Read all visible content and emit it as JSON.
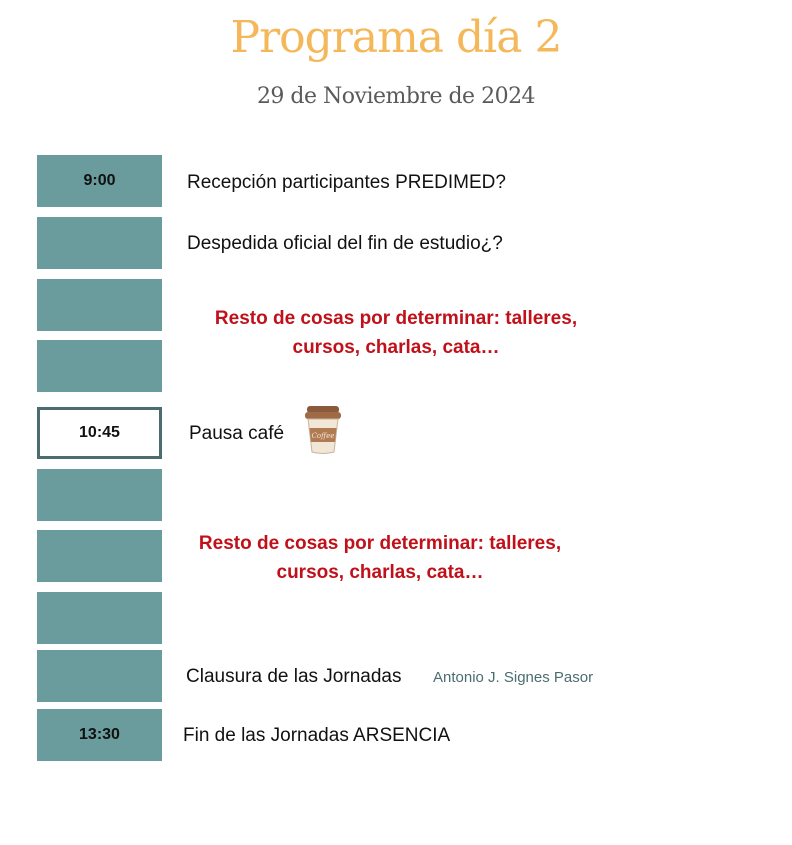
{
  "header": {
    "title": "Programa día 2",
    "date": "29 de Noviembre de 2024"
  },
  "slots": [
    {
      "time": "9:00"
    },
    {
      "time": ""
    },
    {
      "time": ""
    },
    {
      "time": ""
    },
    {
      "time": "10:45"
    },
    {
      "time": ""
    },
    {
      "time": ""
    },
    {
      "time": ""
    },
    {
      "time": ""
    },
    {
      "time": "13:30"
    }
  ],
  "items": {
    "reception": "Recepción participantes PREDIMED?",
    "farewell": "Despedida oficial del fin de estudio¿?",
    "tbd_1_line1": "Resto de cosas por determinar: talleres,",
    "tbd_1_line2": "cursos, charlas, cata…",
    "coffee": "Pausa café",
    "tbd_2_line1": "Resto de cosas por determinar: talleres,",
    "tbd_2_line2": "cursos, charlas, cata…",
    "closing": "Clausura de las Jornadas",
    "closing_speaker": "Antonio J. Signes Pasor",
    "end": "Fin de las Jornadas ARSENCIA"
  },
  "icons": {
    "coffee": "coffee-cup-icon"
  },
  "colors": {
    "title": "#f4b85a",
    "slot": "#6a9c9e",
    "highlight": "#c0111a",
    "speaker": "#4b6d6f"
  }
}
